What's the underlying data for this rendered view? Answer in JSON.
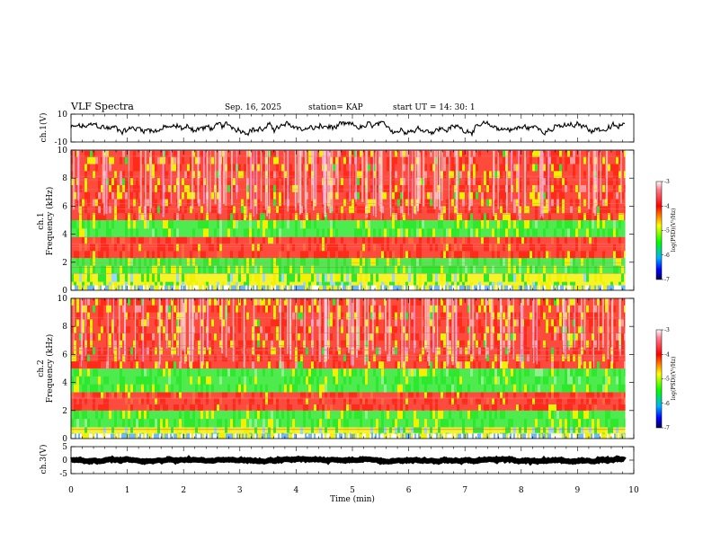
{
  "header": {
    "title": "VLF Spectra",
    "date": "Sep. 16, 2025",
    "station": "station= KAP",
    "start": "start  UT  =   14: 30: 1"
  },
  "chart_data": [
    {
      "id": "waveform-ch1",
      "type": "line",
      "ylabel": "ch.1(V)",
      "ylim": [
        -10,
        10
      ],
      "yticks": [
        "10",
        "-10"
      ],
      "xlim": [
        0,
        10
      ],
      "trace_range": [
        -4,
        4
      ],
      "trace_end_min": 9.85
    },
    {
      "id": "spectrogram-ch1",
      "type": "heatmap",
      "ylabel_top": "ch.1",
      "ylabel": "Frequency  (kHz)",
      "ylim": [
        0,
        10
      ],
      "yticks": [
        "0",
        "2",
        "4",
        "6",
        "8",
        "10"
      ],
      "xlim": [
        0,
        10
      ],
      "colorbar": {
        "label": "log(PSD)(V²/Hz)",
        "range": [
          -7,
          -3
        ],
        "ticks": [
          "-3",
          "-4",
          "-5",
          "-6",
          "-7"
        ]
      },
      "bands": [
        {
          "from_khz": 0,
          "to_khz": 1.2,
          "level": "green-yellow"
        },
        {
          "from_khz": 1.2,
          "to_khz": 2.3,
          "level": "green"
        },
        {
          "from_khz": 2.3,
          "to_khz": 3.8,
          "level": "red"
        },
        {
          "from_khz": 3.8,
          "to_khz": 5.0,
          "level": "green"
        },
        {
          "from_khz": 5.0,
          "to_khz": 10,
          "level": "red-yellow"
        }
      ]
    },
    {
      "id": "spectrogram-ch2",
      "type": "heatmap",
      "ylabel_top": "ch.2",
      "ylabel": "Frequency  (kHz)",
      "ylim": [
        0,
        10
      ],
      "yticks": [
        "0",
        "2",
        "4",
        "6",
        "8",
        "10"
      ],
      "xlim": [
        0,
        10
      ],
      "colorbar": {
        "label": "log(PSD)(V²/Hz)",
        "range": [
          -7,
          -3
        ],
        "ticks": [
          "-3",
          "-4",
          "-5",
          "-6",
          "-7"
        ]
      },
      "bands": [
        {
          "from_khz": 0,
          "to_khz": 0.8,
          "level": "green-yellow"
        },
        {
          "from_khz": 0.8,
          "to_khz": 2.0,
          "level": "green"
        },
        {
          "from_khz": 2.0,
          "to_khz": 3.3,
          "level": "red"
        },
        {
          "from_khz": 3.3,
          "to_khz": 5.0,
          "level": "green"
        },
        {
          "from_khz": 5.0,
          "to_khz": 10,
          "level": "red-yellow"
        }
      ]
    },
    {
      "id": "waveform-ch3",
      "type": "line",
      "ylabel": "ch.3(V)",
      "ylim": [
        -5,
        5
      ],
      "yticks": [
        "5",
        "0",
        "-5"
      ],
      "xlim": [
        0,
        10
      ],
      "trace_range": [
        -0.5,
        0.5
      ],
      "trace_end_min": 9.85
    }
  ],
  "x_axis": {
    "label": "Time  (min)",
    "ticks": [
      "0",
      "1",
      "2",
      "3",
      "4",
      "5",
      "6",
      "7",
      "8",
      "9",
      "10"
    ]
  },
  "colors": {
    "red": "#ff2a1a",
    "yellow": "#f2f200",
    "green": "#2ee82e",
    "trace": "#000000"
  }
}
